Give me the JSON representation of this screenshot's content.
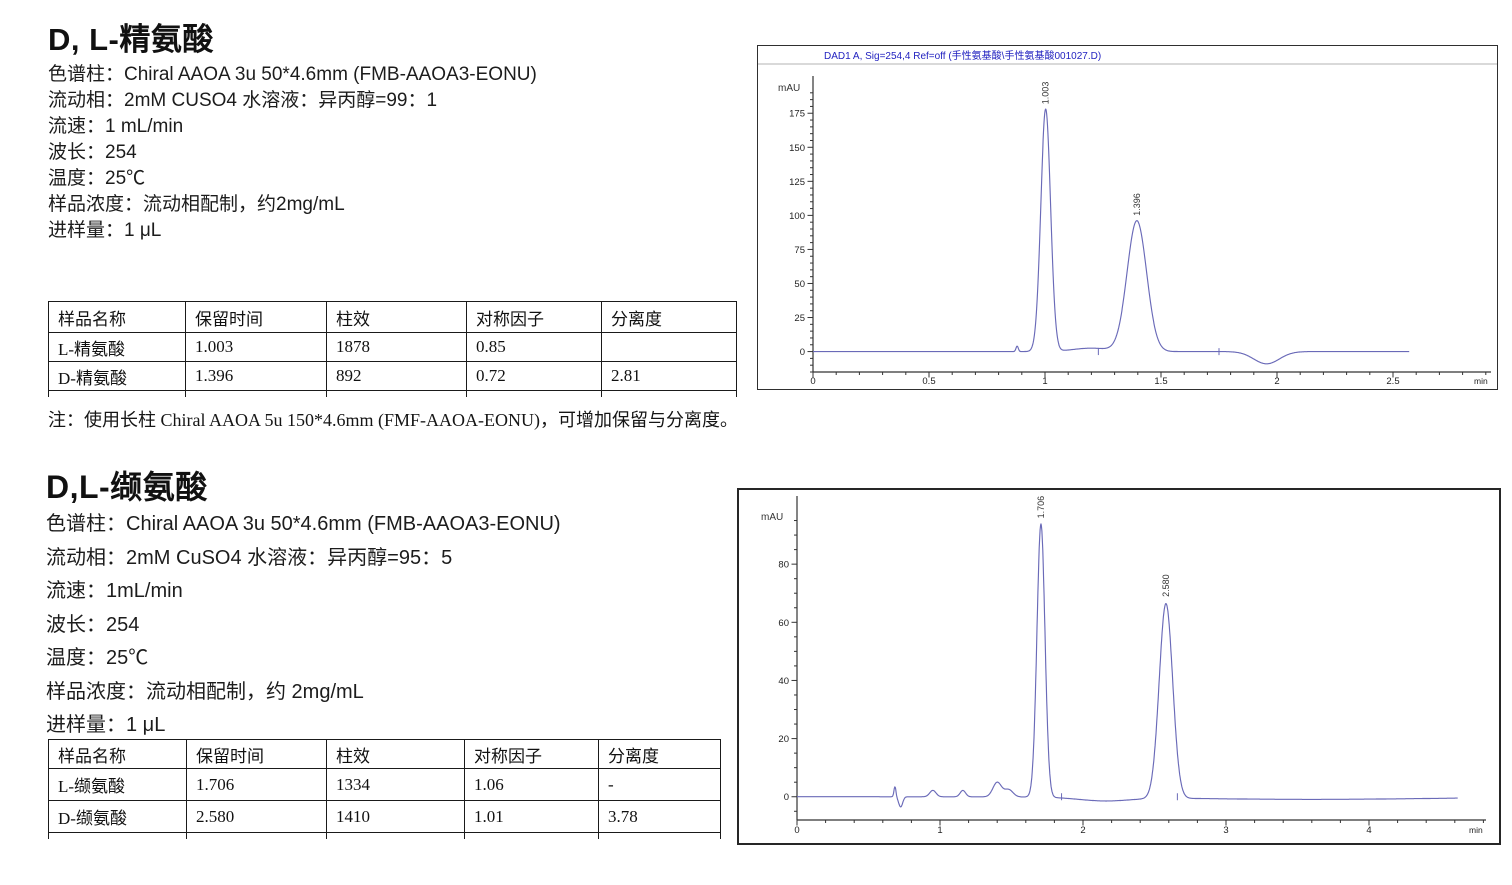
{
  "section1": {
    "title": "D, L-精氨酸",
    "params": [
      "色谱柱：Chiral AAOA 3u 50*4.6mm (FMB-AAOA3-EONU)",
      "流动相：2mM CUSO4 水溶液：异丙醇=99：1",
      "流速：1 mL/min",
      "波长：254",
      "温度：25℃",
      "样品浓度：流动相配制，约2mg/mL",
      "进样量：1 μL"
    ],
    "table": {
      "headers": [
        "样品名称",
        "保留时间",
        "柱效",
        "对称因子",
        "分离度"
      ],
      "rows": [
        [
          "L-精氨酸",
          "1.003",
          "1878",
          "0.85",
          ""
        ],
        [
          "D-精氨酸",
          "1.396",
          "892",
          "0.72",
          "2.81"
        ]
      ]
    },
    "note": "注：使用长柱 Chiral AAOA 5u 150*4.6mm (FMF-AAOA-EONU)，可增加保留与分离度。"
  },
  "section2": {
    "title": "D,L-缬氨酸",
    "params": [
      "色谱柱：Chiral AAOA 3u 50*4.6mm (FMB-AAOA3-EONU)",
      "流动相：2mM CuSO4 水溶液：异丙醇=95：5",
      "流速：1mL/min",
      "波长：254",
      "温度：25℃",
      "样品浓度：流动相配制，约 2mg/mL",
      "进样量：1 μL"
    ],
    "table": {
      "headers": [
        "样品名称",
        "保留时间",
        "柱效",
        "对称因子",
        "分离度"
      ],
      "rows": [
        [
          "L-缬氨酸",
          "1.706",
          "1334",
          "1.06",
          "-"
        ],
        [
          "D-缬氨酸",
          "2.580",
          "1410",
          "1.01",
          "3.78"
        ]
      ]
    }
  },
  "chart_data": [
    {
      "type": "line",
      "name": "chromatogram-arginine",
      "title": "DAD1 A, Sig=254,4 Ref=off (手性氨基酸\\手性氨基酸001027.D)",
      "title_color": "#1f1fbf",
      "ylabel": "mAU",
      "x_unit": "min",
      "xlim": [
        0,
        2.92
      ],
      "ylim": [
        -15,
        195
      ],
      "x_major_ticks": [
        0,
        0.5,
        1,
        1.5,
        2,
        2.5
      ],
      "x_minor_step": 0.1,
      "y_major_ticks": [
        0,
        25,
        50,
        75,
        100,
        125,
        150,
        175
      ],
      "y_minor_step": 5,
      "trace_end": 2.57,
      "line_color": "#6a6ab8",
      "peaks": [
        {
          "rt": 1.003,
          "height": 178,
          "sigma": 0.021,
          "label": "1.003"
        },
        {
          "rt": 1.396,
          "height": 96,
          "sigma": 0.042,
          "label": "1.396"
        }
      ],
      "features": [
        {
          "x": 0.88,
          "amp": 4,
          "sigma": 0.005
        },
        {
          "x": 1.2,
          "amp": 2.5,
          "sigma": 0.08
        },
        {
          "x": 1.955,
          "amp": -9,
          "sigma": 0.055
        }
      ],
      "markers": [
        1.23,
        1.75
      ]
    },
    {
      "type": "line",
      "name": "chromatogram-valine",
      "title": "",
      "ylabel": "mAU",
      "x_unit": "min",
      "xlim": [
        0,
        4.82
      ],
      "ylim": [
        -8,
        100
      ],
      "x_major_ticks": [
        0,
        1,
        2,
        3,
        4
      ],
      "x_minor_step": 0.2,
      "y_major_ticks": [
        0,
        20,
        40,
        60,
        80
      ],
      "y_minor_step": 5,
      "trace_end": 4.62,
      "line_color": "#6a6ab8",
      "peaks": [
        {
          "rt": 1.706,
          "height": 94,
          "sigma": 0.028,
          "label": "1.706"
        },
        {
          "rt": 2.58,
          "height": 67,
          "sigma": 0.047,
          "label": "2.580"
        }
      ],
      "features": [
        {
          "x": 0.685,
          "amp": 3.5,
          "sigma": 0.007
        },
        {
          "x": 0.725,
          "amp": -3.5,
          "sigma": 0.014
        },
        {
          "x": 0.95,
          "amp": 2.2,
          "sigma": 0.022
        },
        {
          "x": 1.16,
          "amp": 2.2,
          "sigma": 0.019
        },
        {
          "x": 1.4,
          "amp": 5,
          "sigma": 0.03
        },
        {
          "x": 1.48,
          "amp": 2.5,
          "sigma": 0.03
        },
        {
          "x": 2.15,
          "amp": -1.2,
          "sigma": 0.18
        },
        {
          "x": 3.6,
          "amp": -0.9,
          "sigma": 0.9
        }
      ],
      "markers": [
        1.85,
        2.66
      ]
    }
  ]
}
